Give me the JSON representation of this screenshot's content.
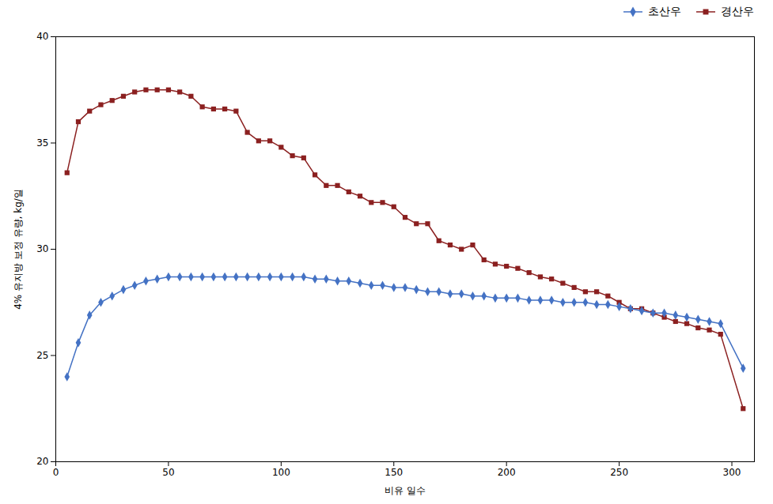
{
  "chart_data": {
    "type": "line",
    "xlabel": "비유 일수",
    "ylabel": "4% 유지방 보정 유량, kg/일",
    "x": [
      5,
      10,
      15,
      20,
      25,
      30,
      35,
      40,
      45,
      50,
      55,
      60,
      65,
      70,
      75,
      80,
      85,
      90,
      95,
      100,
      105,
      110,
      115,
      120,
      125,
      130,
      135,
      140,
      145,
      150,
      155,
      160,
      165,
      170,
      175,
      180,
      185,
      190,
      195,
      200,
      205,
      210,
      215,
      220,
      225,
      230,
      235,
      240,
      245,
      250,
      255,
      260,
      265,
      270,
      275,
      280,
      285,
      290,
      295,
      305
    ],
    "series": [
      {
        "name": "초산우",
        "color": "#4472C4",
        "marker": "diamond",
        "values": [
          24.0,
          25.6,
          26.9,
          27.5,
          27.8,
          28.1,
          28.3,
          28.5,
          28.6,
          28.7,
          28.7,
          28.7,
          28.7,
          28.7,
          28.7,
          28.7,
          28.7,
          28.7,
          28.7,
          28.7,
          28.7,
          28.7,
          28.6,
          28.6,
          28.5,
          28.5,
          28.4,
          28.3,
          28.3,
          28.2,
          28.2,
          28.1,
          28.0,
          28.0,
          27.9,
          27.9,
          27.8,
          27.8,
          27.7,
          27.7,
          27.7,
          27.6,
          27.6,
          27.6,
          27.5,
          27.5,
          27.5,
          27.4,
          27.4,
          27.3,
          27.2,
          27.1,
          27.0,
          27.0,
          26.9,
          26.8,
          26.7,
          26.6,
          26.5,
          24.4
        ]
      },
      {
        "name": "경산우",
        "color": "#8B2020",
        "marker": "square",
        "values": [
          33.6,
          36.0,
          36.5,
          36.8,
          37.0,
          37.2,
          37.4,
          37.5,
          37.5,
          37.5,
          37.4,
          37.2,
          36.7,
          36.6,
          36.6,
          36.5,
          35.5,
          35.1,
          35.1,
          34.8,
          34.4,
          34.3,
          33.5,
          33.0,
          33.0,
          32.7,
          32.5,
          32.2,
          32.2,
          32.0,
          31.5,
          31.2,
          31.2,
          30.4,
          30.2,
          30.0,
          30.2,
          29.5,
          29.3,
          29.2,
          29.1,
          28.9,
          28.7,
          28.6,
          28.4,
          28.2,
          28.0,
          28.0,
          27.8,
          27.5,
          27.2,
          27.2,
          27.0,
          26.8,
          26.6,
          26.5,
          26.3,
          26.2,
          26.0,
          22.5
        ]
      }
    ],
    "xlim": [
      0,
      310
    ],
    "ylim": [
      20,
      40
    ],
    "xticks": [
      0,
      50,
      100,
      150,
      200,
      250,
      300
    ],
    "yticks": [
      20,
      25,
      30,
      35,
      40
    ],
    "grid": false,
    "legend": "upper right"
  }
}
